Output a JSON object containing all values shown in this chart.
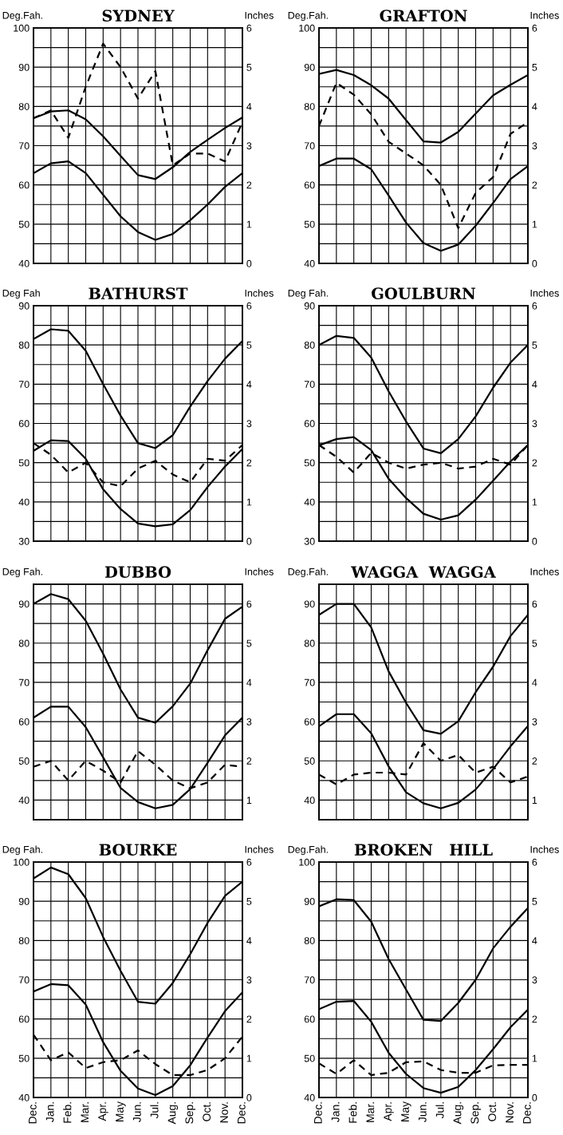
{
  "chart_data": [
    {
      "type": "line",
      "title": "SYDNEY",
      "ylabel": "Deg.Fah.",
      "y2label": "Inches",
      "tick_labels": "y",
      "grid": true,
      "categories": [
        null,
        null,
        null,
        null,
        null,
        null,
        null,
        null,
        null,
        null,
        null,
        null,
        null
      ],
      "ylim": [
        40,
        100
      ],
      "yticks": [
        40,
        {
          "value": 45,
          "label": null
        },
        50,
        {
          "value": 55,
          "label": null
        },
        60,
        {
          "value": 65,
          "label": null
        },
        70,
        {
          "value": 75,
          "label": null
        },
        80,
        {
          "value": 85,
          "label": null
        },
        90,
        {
          "value": 95,
          "label": null
        },
        100
      ],
      "y2lim": [
        0,
        6
      ],
      "y2ticks": [
        0,
        1,
        2,
        3,
        4,
        5,
        6
      ],
      "series": [
        {
          "color": "#000000",
          "line_style": "solid",
          "values": [
            77,
            78.7,
            79,
            76.7,
            72.4,
            67.4,
            62.5,
            61.5,
            64.5,
            68.4,
            71.5,
            74.5,
            77.2
          ]
        },
        {
          "color": "#000000",
          "line_style": "solid",
          "values": [
            63,
            65.5,
            66,
            63,
            57.5,
            52,
            48,
            46,
            47.5,
            51,
            55,
            59.5,
            63
          ]
        },
        {
          "color": "#000000",
          "line_style": "dashed",
          "axis": "y2",
          "values": [
            3.7,
            3.9,
            3.2,
            4.5,
            5.6,
            5.0,
            4.2,
            4.9,
            2.5,
            2.8,
            2.8,
            2.6,
            3.6
          ]
        }
      ]
    },
    {
      "type": "line",
      "title": "GRAFTON",
      "ylabel": "Deg.Fah.",
      "y2label": "Inches",
      "tick_labels": "y",
      "grid": true,
      "categories": [
        null,
        null,
        null,
        null,
        null,
        null,
        null,
        null,
        null,
        null,
        null,
        null,
        null
      ],
      "ylim": [
        40,
        100
      ],
      "yticks": [
        40,
        {
          "value": 45,
          "label": null
        },
        50,
        {
          "value": 55,
          "label": null
        },
        60,
        {
          "value": 65,
          "label": null
        },
        70,
        {
          "value": 75,
          "label": null
        },
        80,
        {
          "value": 85,
          "label": null
        },
        90,
        {
          "value": 95,
          "label": null
        },
        100
      ],
      "y2lim": [
        0,
        6
      ],
      "y2ticks": [
        0,
        1,
        2,
        3,
        4,
        5,
        6
      ],
      "series": [
        {
          "color": "#000000",
          "line_style": "solid",
          "values": [
            88.3,
            89.3,
            88,
            85.4,
            82,
            76.5,
            71.1,
            70.8,
            73.5,
            78.2,
            82.8,
            85.5,
            88
          ]
        },
        {
          "color": "#000000",
          "line_style": "solid",
          "values": [
            64.8,
            66.7,
            66.7,
            64,
            57.3,
            50.4,
            45.2,
            43.2,
            44.8,
            49.6,
            55.4,
            61.5,
            64.8
          ]
        },
        {
          "color": "#000000",
          "line_style": "dashed",
          "axis": "y2",
          "values": [
            3.5,
            4.6,
            4.3,
            3.8,
            3.1,
            2.8,
            2.5,
            2.0,
            0.9,
            1.8,
            2.2,
            3.3,
            3.6
          ]
        }
      ]
    },
    {
      "type": "line",
      "title": "BATHURST",
      "ylabel": "Deg Fah",
      "y2label": "Inches",
      "tick_labels": "y",
      "grid": true,
      "categories": [
        null,
        null,
        null,
        null,
        null,
        null,
        null,
        null,
        null,
        null,
        null,
        null,
        null
      ],
      "ylim": [
        30,
        90
      ],
      "yticks": [
        30,
        {
          "value": 35,
          "label": null
        },
        40,
        {
          "value": 45,
          "label": null
        },
        50,
        {
          "value": 55,
          "label": null
        },
        60,
        {
          "value": 65,
          "label": null
        },
        70,
        {
          "value": 75,
          "label": null
        },
        80,
        {
          "value": 85,
          "label": null
        },
        90
      ],
      "y2lim": [
        0,
        6
      ],
      "y2ticks": [
        0,
        1,
        2,
        3,
        4,
        5,
        6
      ],
      "series": [
        {
          "color": "#000000",
          "line_style": "solid",
          "values": [
            81.5,
            84,
            83.6,
            78.5,
            70,
            62,
            55,
            53.7,
            57,
            64.3,
            70.8,
            76.5,
            81
          ]
        },
        {
          "color": "#000000",
          "line_style": "solid",
          "values": [
            53,
            55.7,
            55.5,
            51,
            43.2,
            38.2,
            34.5,
            33.8,
            34.3,
            37.9,
            43.8,
            49,
            53.5
          ]
        },
        {
          "color": "#000000",
          "line_style": "dashed",
          "axis": "y2",
          "values": [
            2.5,
            2.2,
            1.75,
            2.0,
            1.5,
            1.4,
            1.85,
            2.05,
            1.7,
            1.5,
            2.1,
            2.05,
            2.45
          ]
        }
      ]
    },
    {
      "type": "line",
      "title": "GOULBURN",
      "ylabel": "Deg Fah.",
      "y2label": "Inches",
      "tick_labels": "y",
      "grid": true,
      "categories": [
        null,
        null,
        null,
        null,
        null,
        null,
        null,
        null,
        null,
        null,
        null,
        null,
        null
      ],
      "ylim": [
        30,
        90
      ],
      "yticks": [
        30,
        {
          "value": 35,
          "label": null
        },
        40,
        {
          "value": 45,
          "label": null
        },
        50,
        {
          "value": 55,
          "label": null
        },
        60,
        {
          "value": 65,
          "label": null
        },
        70,
        {
          "value": 75,
          "label": null
        },
        80,
        {
          "value": 85,
          "label": null
        },
        90
      ],
      "y2lim": [
        0,
        6
      ],
      "y2ticks": [
        0,
        1,
        2,
        3,
        4,
        5,
        6
      ],
      "series": [
        {
          "color": "#000000",
          "line_style": "solid",
          "values": [
            80,
            82.3,
            81.8,
            76.8,
            68.2,
            60.5,
            53.6,
            52.4,
            56,
            61.8,
            69.1,
            75.5,
            80
          ]
        },
        {
          "color": "#000000",
          "line_style": "solid",
          "values": [
            54.4,
            56,
            56.5,
            53.2,
            45.9,
            41,
            37,
            35.5,
            36.6,
            40.6,
            45.4,
            50.3,
            54.5
          ]
        },
        {
          "color": "#000000",
          "line_style": "dashed",
          "axis": "y2",
          "values": [
            2.45,
            2.15,
            1.75,
            2.25,
            2.0,
            1.85,
            1.95,
            2.0,
            1.85,
            1.9,
            2.1,
            1.95,
            2.45
          ]
        }
      ]
    },
    {
      "type": "line",
      "title": "DUBBO",
      "ylabel": "Deg Fah.",
      "y2label": "Inches",
      "tick_labels": "y",
      "grid": true,
      "categories": [
        null,
        null,
        null,
        null,
        null,
        null,
        null,
        null,
        null,
        null,
        null,
        null,
        null
      ],
      "ylim": [
        35,
        95
      ],
      "yticks": [
        40,
        {
          "value": 45,
          "label": null
        },
        50,
        {
          "value": 55,
          "label": null
        },
        60,
        {
          "value": 65,
          "label": null
        },
        70,
        {
          "value": 75,
          "label": null
        },
        80,
        {
          "value": 85,
          "label": null
        },
        90
      ],
      "y2lim": [
        0.5,
        6.5
      ],
      "y2ticks": [
        1,
        2,
        3,
        4,
        5,
        6
      ],
      "series": [
        {
          "color": "#000000",
          "line_style": "solid",
          "values": [
            90,
            92.5,
            91.2,
            85.7,
            77.3,
            68.2,
            61,
            59.7,
            63.9,
            69.7,
            78.2,
            86.2,
            89.3
          ]
        },
        {
          "color": "#000000",
          "line_style": "solid",
          "values": [
            61,
            63.8,
            63.8,
            58.6,
            50.9,
            43.1,
            39.5,
            37.9,
            38.8,
            42.8,
            49.5,
            56.5,
            61
          ]
        },
        {
          "color": "#000000",
          "line_style": "dashed",
          "axis": "y2",
          "values": [
            1.85,
            2.0,
            1.5,
            2.0,
            1.75,
            1.45,
            2.25,
            1.9,
            1.5,
            1.3,
            1.45,
            1.9,
            1.85
          ]
        }
      ]
    },
    {
      "type": "line",
      "title": "WAGGA  WAGGA",
      "ylabel": "Deg.Fah.",
      "y2label": "Inches",
      "tick_labels": "y",
      "grid": true,
      "categories": [
        null,
        null,
        null,
        null,
        null,
        null,
        null,
        null,
        null,
        null,
        null,
        null,
        null
      ],
      "ylim": [
        35,
        95
      ],
      "yticks": [
        40,
        {
          "value": 45,
          "label": null
        },
        50,
        {
          "value": 55,
          "label": null
        },
        60,
        {
          "value": 65,
          "label": null
        },
        70,
        {
          "value": 75,
          "label": null
        },
        80,
        {
          "value": 85,
          "label": null
        },
        90
      ],
      "y2lim": [
        0.5,
        6.5
      ],
      "y2ticks": [
        1,
        2,
        3,
        4,
        5,
        6
      ],
      "series": [
        {
          "color": "#000000",
          "line_style": "solid",
          "values": [
            87.2,
            90,
            90,
            84,
            72.8,
            64.8,
            57.8,
            56.9,
            60.1,
            67.5,
            74,
            81.8,
            87.2
          ]
        },
        {
          "color": "#000000",
          "line_style": "solid",
          "values": [
            58.8,
            61.9,
            61.9,
            57,
            48.6,
            42,
            39.2,
            37.9,
            39.3,
            42.7,
            47.9,
            53.7,
            58.9
          ]
        },
        {
          "color": "#000000",
          "line_style": "dashed",
          "axis": "y2",
          "values": [
            1.65,
            1.4,
            1.65,
            1.7,
            1.7,
            1.65,
            2.45,
            2.0,
            2.15,
            1.7,
            1.85,
            1.45,
            1.6
          ]
        }
      ]
    },
    {
      "type": "line",
      "title": "BOURKE",
      "ylabel": "Deg Fah.",
      "y2label": "Inches",
      "grid": true,
      "categories": [
        "Dec.",
        "Jan.",
        "Feb.",
        "Mar.",
        "Apr.",
        "May",
        "Jun.",
        "Jul.",
        "Aug.",
        "Sep.",
        "Oct.",
        "Nov.",
        "Dec."
      ],
      "ylim": [
        40,
        100
      ],
      "yticks": [
        40,
        {
          "value": 45,
          "label": null
        },
        50,
        {
          "value": 55,
          "label": null
        },
        60,
        {
          "value": 65,
          "label": null
        },
        70,
        {
          "value": 75,
          "label": null
        },
        80,
        {
          "value": 85,
          "label": null
        },
        90,
        {
          "value": 95,
          "label": null
        },
        100
      ],
      "y2lim": [
        0,
        6
      ],
      "y2ticks": [
        0,
        1,
        2,
        3,
        4,
        5,
        6
      ],
      "series": [
        {
          "color": "#000000",
          "line_style": "solid",
          "values": [
            95.8,
            98.6,
            96.9,
            90.8,
            80.9,
            72.3,
            64.4,
            63.9,
            69.2,
            76.5,
            84.5,
            91.4,
            95
          ]
        },
        {
          "color": "#000000",
          "line_style": "solid",
          "values": [
            67,
            68.9,
            68.6,
            63.7,
            54.1,
            46.8,
            42.3,
            40.6,
            42.9,
            48.2,
            55.3,
            62,
            66.8
          ]
        },
        {
          "color": "#000000",
          "line_style": "dashed",
          "axis": "y2",
          "values": [
            1.6,
            0.95,
            1.15,
            0.75,
            0.9,
            0.95,
            1.2,
            0.85,
            0.57,
            0.57,
            0.7,
            1.0,
            1.55
          ]
        }
      ]
    },
    {
      "type": "line",
      "title": "BROKEN   HILL",
      "ylabel": "Deg.Fah.",
      "y2label": "Inches",
      "grid": true,
      "categories": [
        "Dec.",
        "Jan.",
        "Feb.",
        "Mar.",
        "Apr.",
        "May",
        "Jun.",
        "Jul.",
        "Aug.",
        "Sep.",
        "Oct.",
        "Nov.",
        "Dec."
      ],
      "ylim": [
        40,
        100
      ],
      "yticks": [
        40,
        {
          "value": 45,
          "label": null
        },
        50,
        {
          "value": 55,
          "label": null
        },
        60,
        {
          "value": 65,
          "label": null
        },
        70,
        {
          "value": 75,
          "label": null
        },
        80,
        {
          "value": 85,
          "label": null
        },
        90,
        {
          "value": 95,
          "label": null
        },
        100
      ],
      "y2lim": [
        0,
        6
      ],
      "y2ticks": [
        0,
        1,
        2,
        3,
        4,
        5,
        6
      ],
      "series": [
        {
          "color": "#000000",
          "line_style": "solid",
          "values": [
            88.7,
            90.5,
            90.3,
            84.8,
            75.3,
            67.5,
            59.8,
            59.5,
            64.1,
            70,
            78,
            83.5,
            88.3
          ]
        },
        {
          "color": "#000000",
          "line_style": "solid",
          "values": [
            62.5,
            64.4,
            64.6,
            59.3,
            51.4,
            46,
            42.4,
            41.2,
            42.7,
            47,
            52.3,
            57.9,
            62.4
          ]
        },
        {
          "color": "#000000",
          "line_style": "dashed",
          "axis": "y2",
          "values": [
            0.87,
            0.6,
            0.95,
            0.57,
            0.63,
            0.9,
            0.92,
            0.7,
            0.63,
            0.63,
            0.82,
            0.83,
            0.83
          ]
        }
      ]
    }
  ]
}
